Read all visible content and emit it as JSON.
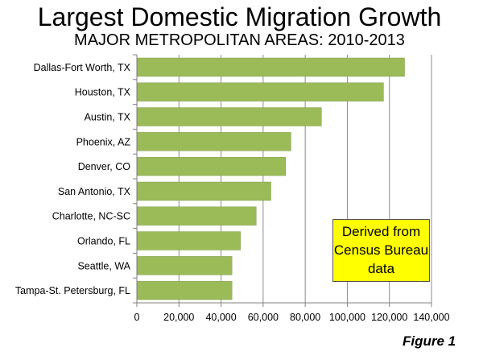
{
  "chart_data": {
    "type": "bar",
    "orientation": "horizontal",
    "title": "Largest Domestic Migration Growth",
    "subtitle": "MAJOR METROPOLITAN AREAS: 2010-2013",
    "categories": [
      "Dallas-Fort Worth, TX",
      "Houston, TX",
      "Austin, TX",
      "Phoenix, AZ",
      "Denver, CO",
      "San Antonio, TX",
      "Charlotte, NC-SC",
      "Orlando, FL",
      "Seattle, WA",
      "Tampa-St. Petersburg, FL"
    ],
    "values": [
      127000,
      117000,
      87500,
      73000,
      70500,
      63500,
      56500,
      49000,
      45000,
      45000
    ],
    "xlim": [
      0,
      140000
    ],
    "xticks": [
      0,
      20000,
      40000,
      60000,
      80000,
      100000,
      120000,
      140000
    ],
    "xtick_labels": [
      "0",
      "20,000",
      "40,000",
      "60,000",
      "80,000",
      "100,000",
      "120,000",
      "140,000"
    ],
    "grid": true,
    "bar_color": "#9bbb59",
    "annotation": [
      "Derived from",
      "Census Bureau",
      "data"
    ]
  },
  "figure_label": "Figure 1"
}
